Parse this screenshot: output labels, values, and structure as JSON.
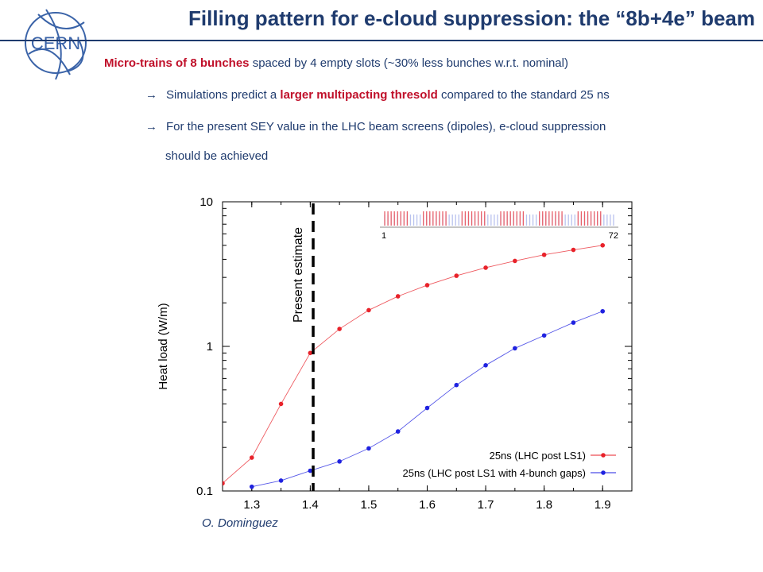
{
  "slide": {
    "title": "Filling pattern for e-cloud suppression: the “8b+4e” beam",
    "line1_red": "Micro-trains of 8 bunches",
    "line1_rest": " spaced by 4 empty slots (~30% less bunches w.r.t. nominal)",
    "bullet1_pre": "Simulations predict a ",
    "bullet1_red": "larger multipacting thresold",
    "bullet1_post": " compared to the standard 25 ns",
    "bullet2_line1": "For the present SEY value  in the LHC beam screens (dipoles), e-cloud suppression",
    "bullet2_line2": "should be achieved",
    "arrow_glyph": "→",
    "credit": "O. Dominguez",
    "logo_text": "CERN"
  },
  "chart_data": {
    "type": "line",
    "title": "",
    "xlabel": "",
    "ylabel": "Heat load (W/m)",
    "xlim": [
      1.25,
      1.95
    ],
    "ylim": [
      0.1,
      10
    ],
    "yscale": "log",
    "x_ticks": [
      1.3,
      1.4,
      1.5,
      1.6,
      1.7,
      1.8,
      1.9
    ],
    "x_tick_labels": [
      "1.3",
      "1.4",
      "1.5",
      "1.6",
      "1.7",
      "1.8",
      "1.9"
    ],
    "y_ticks": [
      0.1,
      1,
      10
    ],
    "y_tick_labels": [
      "0.1",
      "1",
      "10"
    ],
    "grid": false,
    "legend_position": "bottom-right",
    "series": [
      {
        "name": "25ns (LHC post LS1)",
        "color": "#e8222a",
        "x": [
          1.25,
          1.3,
          1.35,
          1.4,
          1.45,
          1.5,
          1.55,
          1.6,
          1.65,
          1.7,
          1.75,
          1.8,
          1.85,
          1.9
        ],
        "y": [
          0.113,
          0.17,
          0.4,
          0.9,
          1.32,
          1.78,
          2.22,
          2.65,
          3.08,
          3.5,
          3.9,
          4.3,
          4.65,
          5.0
        ]
      },
      {
        "name": "25ns (LHC post LS1 with 4-bunch gaps)",
        "color": "#1f22e0",
        "x": [
          1.3,
          1.35,
          1.4,
          1.45,
          1.5,
          1.55,
          1.6,
          1.65,
          1.7,
          1.75,
          1.8,
          1.85,
          1.9
        ],
        "y": [
          0.107,
          0.118,
          0.138,
          0.16,
          0.197,
          0.258,
          0.375,
          0.54,
          0.74,
          0.97,
          1.19,
          1.46,
          1.75
        ]
      }
    ],
    "annotations": [
      {
        "text": "Present estimate",
        "x": 1.405,
        "style": "dashed-vertical-line"
      }
    ],
    "inset": {
      "start_label": "1",
      "end_label": "72",
      "pattern_trains": 6,
      "bunches_per_train": 8,
      "empty_slots": 4
    }
  }
}
